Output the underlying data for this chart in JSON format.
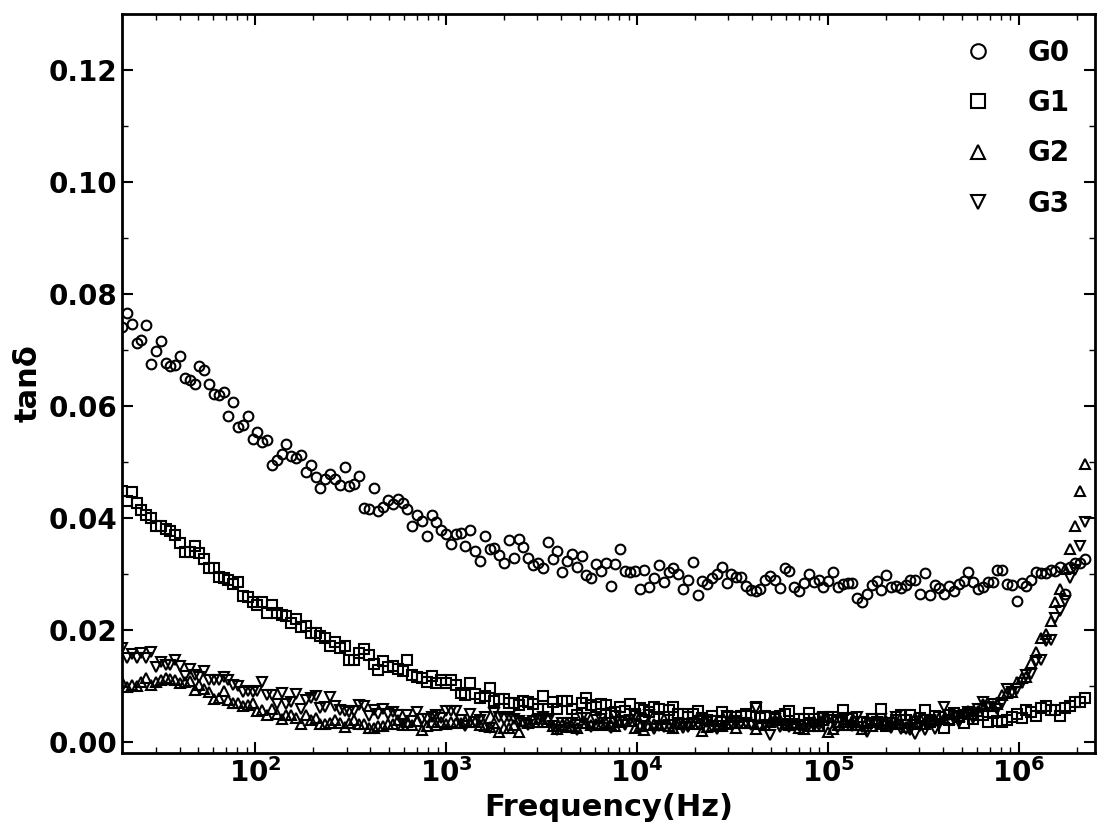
{
  "title": "",
  "xlabel": "Frequency(Hz)",
  "ylabel": "tanδ",
  "xlim": [
    20,
    2500000
  ],
  "ylim": [
    -0.002,
    0.13
  ],
  "yticks": [
    0.0,
    0.02,
    0.04,
    0.06,
    0.08,
    0.1,
    0.12
  ],
  "background_color": "#ffffff",
  "legend_labels": [
    "G0",
    "G1",
    "G2",
    "G3"
  ],
  "marker_size": 7,
  "marker_color": "black",
  "marker_facecolor": "none",
  "marker_edge_width": 1.5,
  "label_fontsize": 22,
  "tick_fontsize": 20,
  "legend_fontsize": 20,
  "n_points": 200
}
